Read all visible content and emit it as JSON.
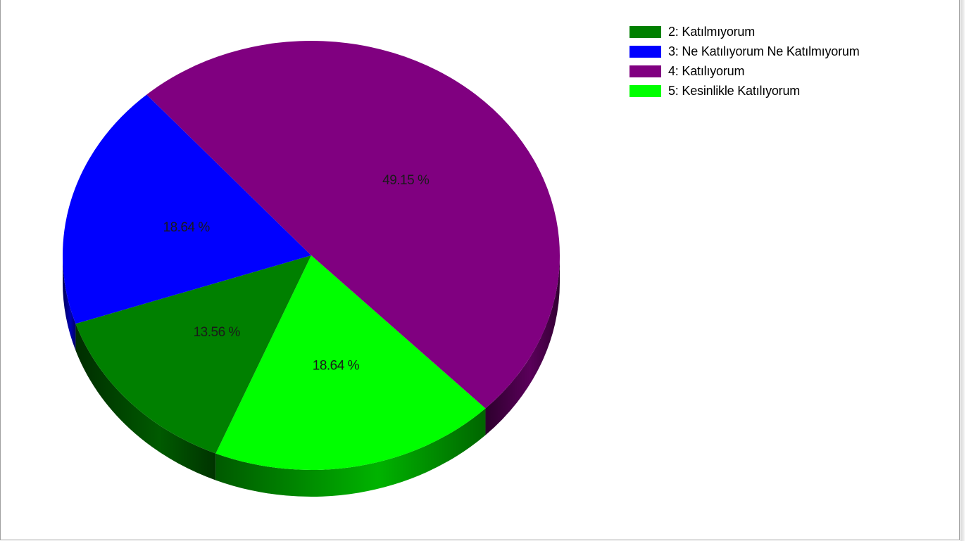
{
  "chart_data": {
    "type": "pie",
    "three_d": true,
    "legend_position": "top-right",
    "slices": [
      {
        "label": "2: Katılmıyorum",
        "value": 13.56,
        "value_label": "13.56 %",
        "color": "#008000"
      },
      {
        "label": "3: Ne Katılıyorum Ne Katılmıyorum",
        "value": 18.64,
        "value_label": "18.64 %",
        "color": "#0000ff"
      },
      {
        "label": "4: Katılıyorum",
        "value": 49.15,
        "value_label": "49.15 %",
        "color": "#800080"
      },
      {
        "label": "5: Kesinlikle Katılıyorum",
        "value": 18.64,
        "value_label": "18.64 %",
        "color": "#00ff00"
      }
    ]
  }
}
